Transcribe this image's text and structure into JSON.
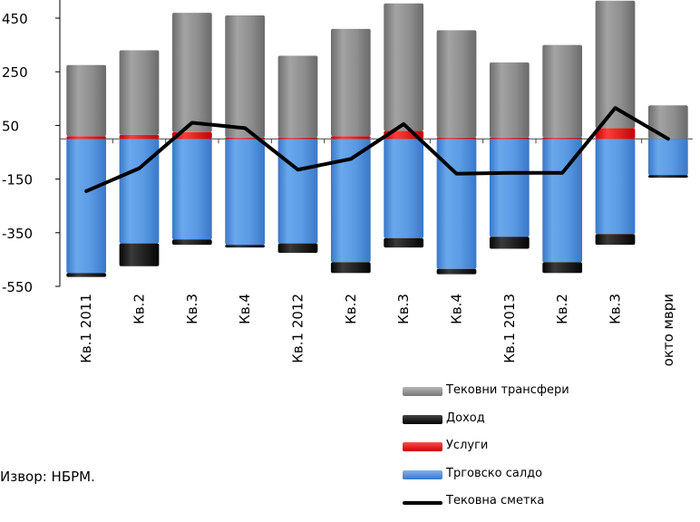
{
  "chart_data": {
    "type": "bar",
    "stacked": true,
    "categories": [
      "Кв.1 2011",
      "Кв.2",
      "Кв.3",
      "Кв.4",
      "Кв.1 2012",
      "Кв.2",
      "Кв.3",
      "Кв.4",
      "Кв.1 2013",
      "Кв.2",
      "Кв.3",
      "окто мври"
    ],
    "series": [
      {
        "name": "Трговско салдо",
        "color": "#4f8fd8",
        "values": [
          -500,
          -390,
          -375,
          -395,
          -390,
          -460,
          -370,
          -485,
          -365,
          -460,
          -355,
          -135
        ]
      },
      {
        "name": "Услуги",
        "color": "#ee1c1c",
        "values": [
          10,
          15,
          25,
          5,
          5,
          10,
          30,
          5,
          5,
          5,
          40,
          0
        ]
      },
      {
        "name": "Доход",
        "color": "#1a1a1a",
        "values": [
          -15,
          -85,
          -20,
          -10,
          -35,
          -40,
          -35,
          -20,
          -45,
          -40,
          -40,
          -10
        ]
      },
      {
        "name": "Тековни трансфери",
        "color": "#8c8c8c",
        "values": [
          265,
          315,
          445,
          455,
          305,
          400,
          475,
          400,
          280,
          345,
          475,
          125
        ]
      }
    ],
    "line": {
      "name": "Тековна сметка",
      "color": "#000000",
      "values": [
        -195,
        -110,
        60,
        40,
        -115,
        -75,
        55,
        -130,
        -127,
        -127,
        115,
        0
      ]
    },
    "yticks": [
      450,
      250,
      50,
      -150,
      -350,
      -550
    ],
    "ylim": [
      -550,
      500
    ],
    "grid": false,
    "legend_position": "bottom-right"
  },
  "legend": {
    "transfers": "Тековни трансфери",
    "income": "Доход",
    "services": "Услуги",
    "trade": "Трговско салдо",
    "current": "Тековна сметка"
  },
  "source": "Извор: НБРМ."
}
